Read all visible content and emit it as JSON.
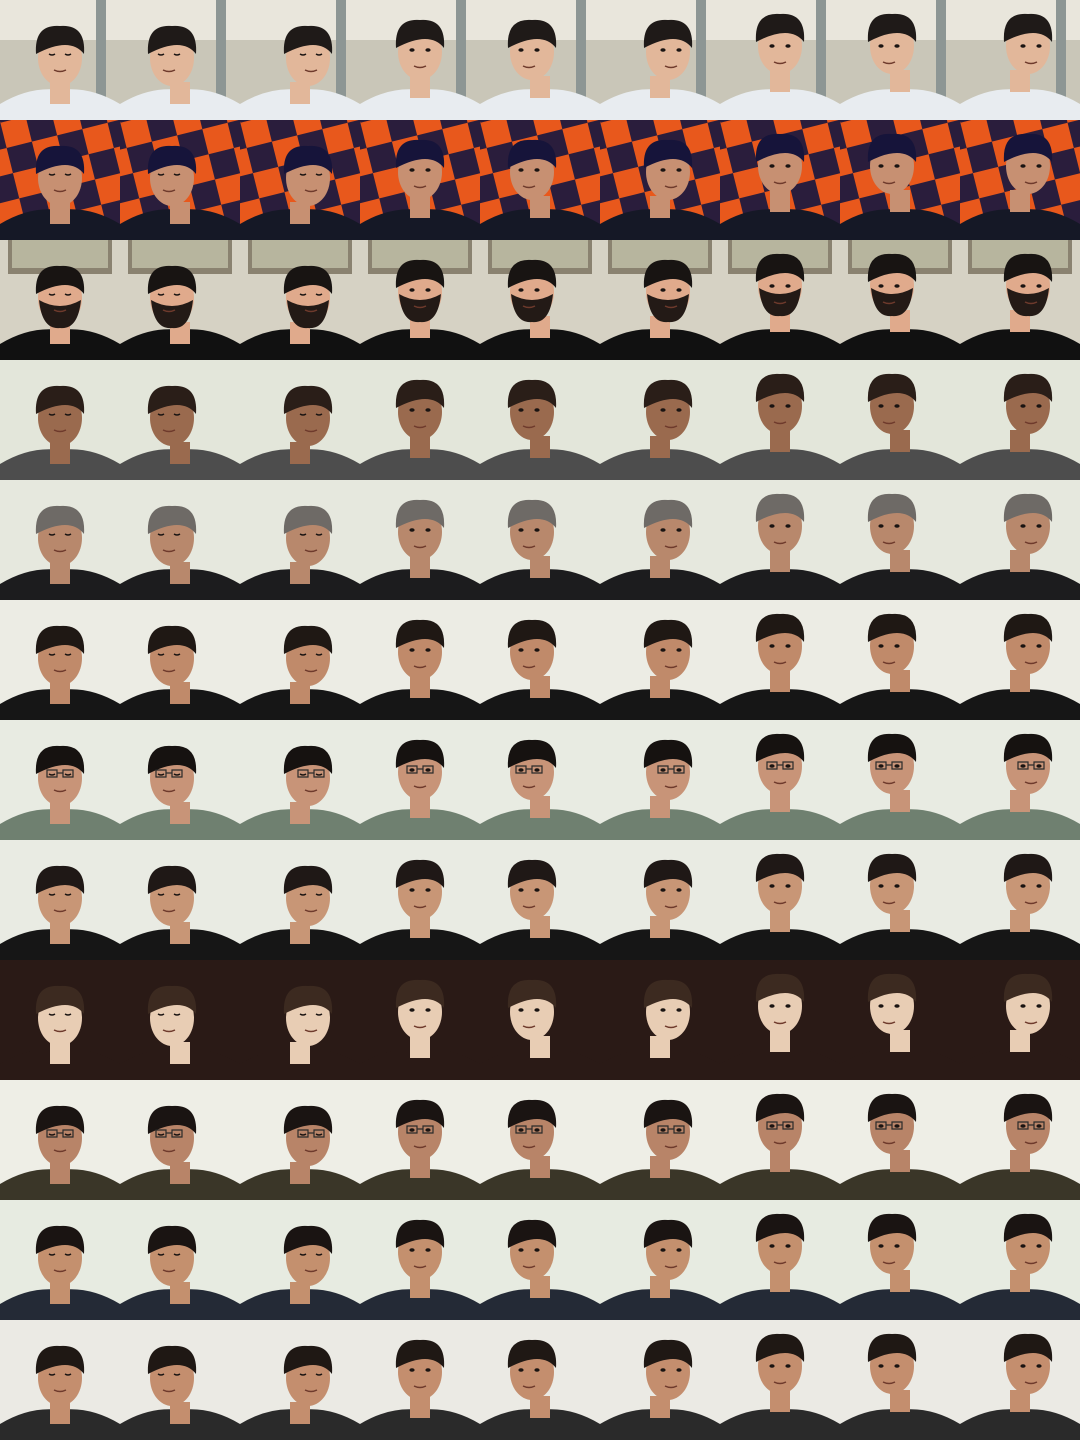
{
  "layout": {
    "rows": 12,
    "cols": 9
  },
  "subjects": [
    {
      "background": "lab",
      "bg": "#c9c6b8",
      "skin": "#e2b79a",
      "hair": "#1f1a18",
      "shirt": "#e8ecf0",
      "beard": null
    },
    {
      "background": "checker",
      "bg": "#e8581c",
      "bg2": "#2a1d3c",
      "skin": "#c79072",
      "hair": "#16143a",
      "shirt": "#151826",
      "beard": null
    },
    {
      "background": "room",
      "bg": "#d6d2c4",
      "skin": "#e0aa8c",
      "hair": "#181412",
      "shirt": "#111111",
      "beard": "#231a16"
    },
    {
      "background": "plain",
      "bg": "#e3e6da",
      "skin": "#9a6a4e",
      "hair": "#2a1e18",
      "shirt": "#4d4d4d",
      "beard": null
    },
    {
      "background": "plain",
      "bg": "#e6e8de",
      "skin": "#b8886c",
      "hair": "#6e6a66",
      "shirt": "#1c1c1e",
      "beard": null
    },
    {
      "background": "plain",
      "bg": "#ecece4",
      "skin": "#c08a6a",
      "hair": "#1f1814",
      "shirt": "#161616",
      "beard": null
    },
    {
      "background": "plain",
      "bg": "#e8ebe2",
      "skin": "#c89478",
      "hair": "#161210",
      "shirt": "#6f8070",
      "beard": null,
      "glasses": true
    },
    {
      "background": "plain",
      "bg": "#e9ebe3",
      "skin": "#c89676",
      "hair": "#1f1816",
      "shirt": "#161616",
      "beard": null
    },
    {
      "background": "dark",
      "bg": "#2a1a16",
      "skin": "#e8cdb4",
      "hair": "#3c2a20",
      "shirt": "#2a1a16",
      "beard": null
    },
    {
      "background": "plain",
      "bg": "#eeeee6",
      "skin": "#b88468",
      "hair": "#1a1412",
      "shirt": "#3a3628",
      "beard": null,
      "glasses": true
    },
    {
      "background": "plain",
      "bg": "#e7ebe1",
      "skin": "#c4906e",
      "hair": "#1a1412",
      "shirt": "#242a36",
      "beard": null
    },
    {
      "background": "plain",
      "bg": "#ebeae4",
      "skin": "#c48e6e",
      "hair": "#1f1814",
      "shirt": "#2a2a2a",
      "beard": null
    }
  ],
  "poses": [
    {
      "pose": "down",
      "yaw": 0,
      "pitch": 1
    },
    {
      "pose": "down-left",
      "yaw": -1,
      "pitch": 1
    },
    {
      "pose": "down-right",
      "yaw": 1,
      "pitch": 1
    },
    {
      "pose": "front",
      "yaw": 0,
      "pitch": 0
    },
    {
      "pose": "left",
      "yaw": -1,
      "pitch": 0
    },
    {
      "pose": "right",
      "yaw": 1,
      "pitch": 0
    },
    {
      "pose": "up",
      "yaw": 0,
      "pitch": -1
    },
    {
      "pose": "up-left",
      "yaw": -1,
      "pitch": -1
    },
    {
      "pose": "up-right",
      "yaw": 1,
      "pitch": -1
    }
  ]
}
